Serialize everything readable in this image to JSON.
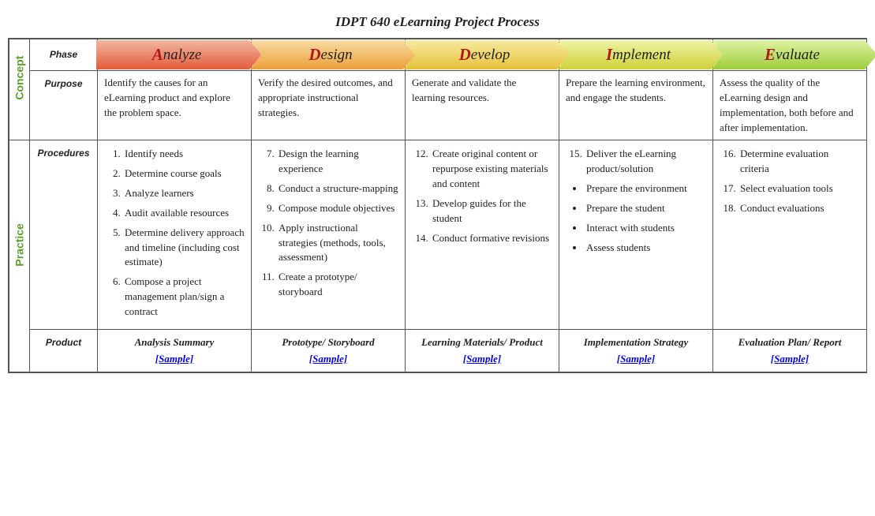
{
  "title": "IDPT 640 eLearning Project Process",
  "side_labels": {
    "concept": "Concept",
    "practice": "Practice"
  },
  "row_labels": {
    "phase": "Phase",
    "purpose": "Purpose",
    "procedures": "Procedures",
    "product": "Product"
  },
  "phases": [
    {
      "first": "A",
      "rest": "nalyze",
      "c1": "#f3b6a0",
      "c2": "#e45b3c"
    },
    {
      "first": "D",
      "rest": "esign",
      "c1": "#f7dca3",
      "c2": "#ec9f3a"
    },
    {
      "first": "D",
      "rest": "evelop",
      "c1": "#f7eaa0",
      "c2": "#e6c23a"
    },
    {
      "first": "I",
      "rest": "mplement",
      "c1": "#eef2a3",
      "c2": "#cfd23a"
    },
    {
      "first": "E",
      "rest": "valuate",
      "c1": "#def3a3",
      "c2": "#9ecb3a"
    }
  ],
  "purpose": [
    "Identify the causes for an eLearning product and explore the problem space.",
    "Verify the desired outcomes, and appropriate instructional strategies.",
    "Generate and validate the learning resources.",
    "Prepare the learning environment, and engage the students.",
    "Assess the quality of the eLearning design and implementation, both before and after implementation."
  ],
  "procedures": [
    {
      "type": "ol",
      "start": 1,
      "items": [
        "Identify needs",
        "Determine course goals",
        "Analyze learners",
        "Audit available resources",
        "Determine delivery approach and timeline (including cost estimate)",
        "Compose a project management plan/sign a contract"
      ]
    },
    {
      "type": "ol",
      "start": 7,
      "items": [
        "Design the learning experience",
        "Conduct a structure-mapping",
        "Compose module objectives",
        "Apply instructional strategies (methods, tools, assessment)",
        "Create a prototype/ storyboard"
      ]
    },
    {
      "type": "ol",
      "start": 12,
      "items": [
        "Create original content or repurpose existing materials and content",
        "Develop guides for the student",
        "Conduct formative revisions"
      ]
    },
    {
      "type": "mixed",
      "start": 15,
      "ol_items": [
        "Deliver the eLearning product/solution"
      ],
      "ul_items": [
        "Prepare the environment",
        "Prepare the student",
        "Interact with students",
        "Assess students"
      ]
    },
    {
      "type": "ol",
      "start": 16,
      "items": [
        "Determine evaluation criteria",
        "Select evaluation tools",
        "Conduct evaluations"
      ]
    }
  ],
  "products": [
    {
      "name": "Analysis Summary",
      "link": "[Sample]"
    },
    {
      "name": "Prototype/ Storyboard",
      "link": "[Sample]"
    },
    {
      "name": "Learning Materials/ Product",
      "link": "[Sample]"
    },
    {
      "name": "Implementation Strategy",
      "link": "[Sample]"
    },
    {
      "name": "Evaluation Plan/ Report",
      "link": "[Sample]"
    }
  ],
  "style": {
    "first_letter_color": "#b01818",
    "side_label_color": "#5aa02c",
    "border_color": "#555555"
  }
}
